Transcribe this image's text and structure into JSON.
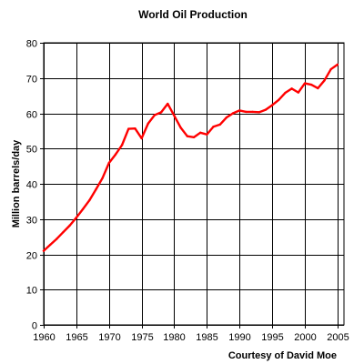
{
  "chart_data": {
    "type": "line",
    "title": "World Oil Production",
    "xlabel": "",
    "ylabel": "Million barrels/day",
    "credit": "Courtesy of David Moe",
    "xlim": [
      1960,
      2006
    ],
    "ylim": [
      0,
      80
    ],
    "x_ticks": [
      "1960",
      "1965",
      "1970",
      "1975",
      "1980",
      "1985",
      "1990",
      "1995",
      "2000",
      "2005"
    ],
    "y_ticks": [
      "0",
      "10",
      "20",
      "30",
      "40",
      "50",
      "60",
      "70",
      "80"
    ],
    "grid": true,
    "series": [
      {
        "color": "#ff0000",
        "x": [
          1960,
          1961,
          1962,
          1963,
          1964,
          1965,
          1966,
          1967,
          1968,
          1969,
          1970,
          1971,
          1972,
          1973,
          1974,
          1975,
          1976,
          1977,
          1978,
          1979,
          1980,
          1981,
          1982,
          1983,
          1984,
          1985,
          1986,
          1987,
          1988,
          1989,
          1990,
          1991,
          1992,
          1993,
          1994,
          1995,
          1996,
          1997,
          1998,
          1999,
          2000,
          2001,
          2002,
          2003,
          2004,
          2005
        ],
        "y": [
          21.0,
          22.7,
          24.4,
          26.3,
          28.2,
          30.4,
          32.8,
          35.3,
          38.4,
          41.6,
          45.9,
          48.3,
          51.0,
          55.6,
          55.7,
          52.9,
          57.1,
          59.5,
          60.3,
          62.7,
          59.3,
          55.9,
          53.5,
          53.2,
          54.5,
          54.0,
          56.2,
          56.8,
          58.8,
          60.0,
          60.8,
          60.4,
          60.4,
          60.3,
          61.0,
          62.3,
          63.8,
          65.8,
          67.0,
          65.9,
          68.5,
          68.1,
          67.1,
          69.3,
          72.5,
          73.8
        ]
      }
    ]
  }
}
